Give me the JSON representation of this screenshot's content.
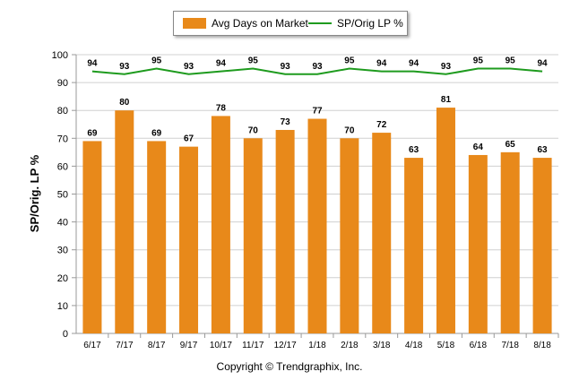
{
  "chart_data": {
    "type": "bar",
    "categories": [
      "6/17",
      "7/17",
      "8/17",
      "9/17",
      "10/17",
      "11/17",
      "12/17",
      "1/18",
      "2/18",
      "3/18",
      "4/18",
      "5/18",
      "6/18",
      "7/18",
      "8/18"
    ],
    "series": [
      {
        "name": "Avg Days on Market",
        "type": "bar",
        "color": "#e8891a",
        "values": [
          69,
          80,
          69,
          67,
          78,
          70,
          73,
          77,
          70,
          72,
          63,
          81,
          64,
          65,
          63
        ]
      },
      {
        "name": "SP/Orig LP %",
        "type": "line",
        "color": "#1e9b1e",
        "values": [
          94,
          93,
          95,
          93,
          94,
          95,
          93,
          93,
          95,
          94,
          94,
          93,
          95,
          95,
          94
        ]
      }
    ],
    "ylabel": "SP/Orig. LP %",
    "xlabel": "",
    "ylim": [
      0,
      100
    ],
    "yticks": [
      0,
      10,
      20,
      30,
      40,
      50,
      60,
      70,
      80,
      90,
      100
    ],
    "grid": true,
    "legend_position": "top-center"
  },
  "footer": "Copyright © Trendgraphix, Inc."
}
